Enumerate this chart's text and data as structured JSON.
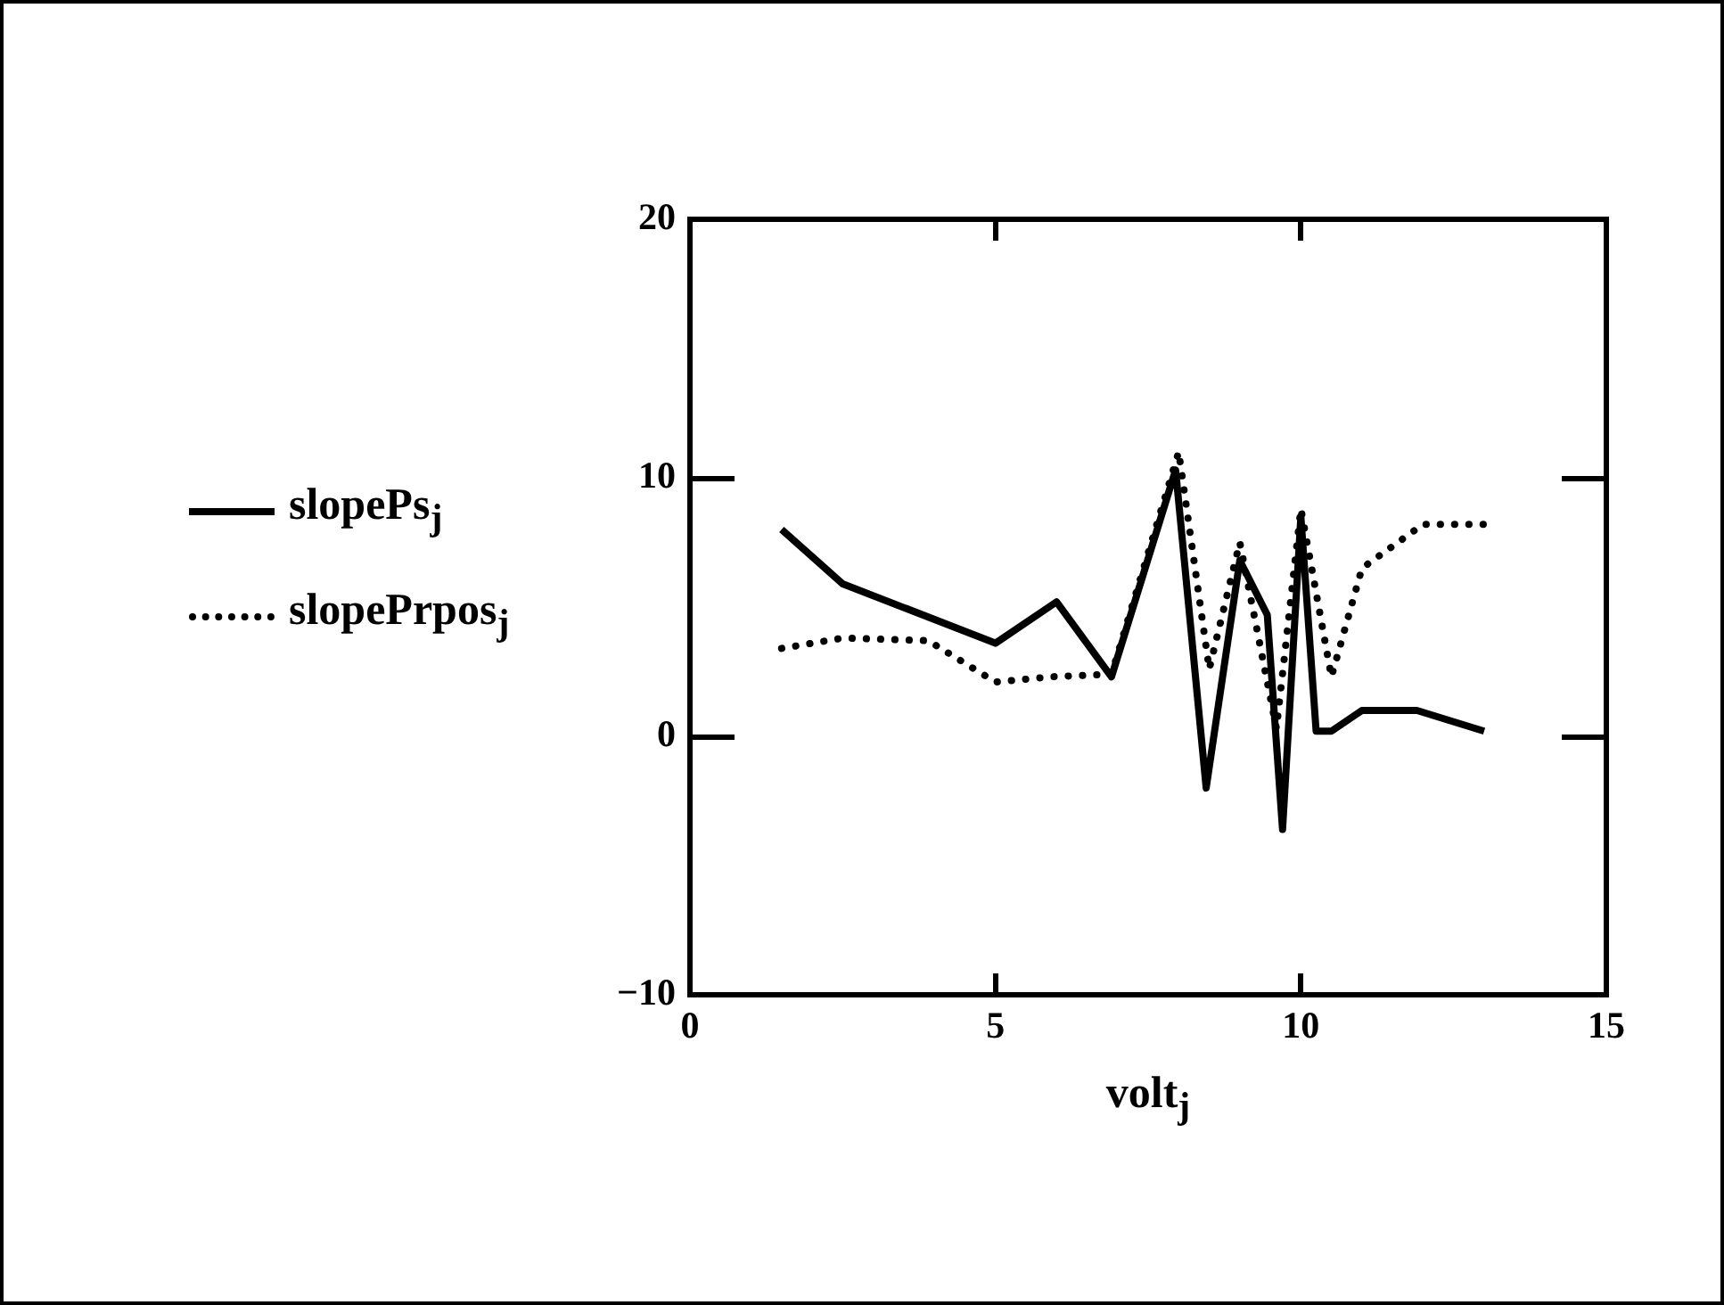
{
  "chart_data": {
    "type": "line",
    "xlabel": "volt$_{j}$",
    "xlim": [
      0,
      15
    ],
    "xticks": [
      0,
      5,
      10,
      15
    ],
    "ylim": [
      -10,
      20
    ],
    "yticks": [
      -10,
      0,
      10,
      20
    ],
    "grid": false,
    "legend": "left",
    "series": [
      {
        "name": "slopePs$_{j}$",
        "color": "#000000",
        "line_style": "solid",
        "x": [
          1.5,
          2.5,
          5.0,
          6.0,
          6.9,
          7.95,
          8.45,
          9.0,
          9.45,
          9.7,
          10.0,
          10.25,
          10.5,
          11.0,
          11.9,
          13.0
        ],
        "values": [
          8.0,
          5.9,
          3.6,
          5.2,
          2.3,
          10.3,
          -2.0,
          6.8,
          4.7,
          -3.6,
          8.5,
          0.2,
          0.2,
          1.0,
          1.0,
          0.2
        ]
      },
      {
        "name": "slopePrpos$_{j}$",
        "color": "#000000",
        "line_style": "dotted",
        "x": [
          1.5,
          2.5,
          3.9,
          5.0,
          5.9,
          6.9,
          8.0,
          8.5,
          9.0,
          9.6,
          10.0,
          10.5,
          11.0,
          12.0,
          13.0
        ],
        "values": [
          3.4,
          3.8,
          3.7,
          2.1,
          2.3,
          2.4,
          11.0,
          2.6,
          7.5,
          0.3,
          8.8,
          2.3,
          6.5,
          8.2,
          8.2
        ]
      }
    ]
  }
}
